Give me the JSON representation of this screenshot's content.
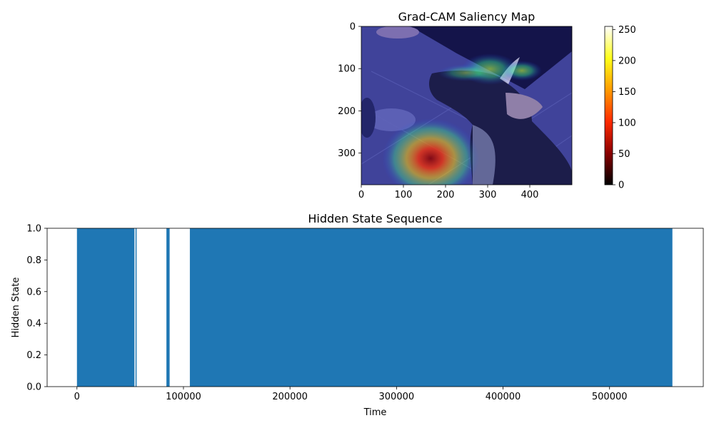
{
  "chart_data": [
    {
      "type": "heatmap",
      "title": "Grad-CAM Saliency Map",
      "image_description": "dog photo with saliency overlay",
      "image_size": [
        500,
        375
      ],
      "xticks": [
        "0",
        "100",
        "200",
        "300",
        "400"
      ],
      "yticks": [
        "0",
        "100",
        "200",
        "300"
      ],
      "colorbar": {
        "range": [
          0,
          255
        ],
        "ticks": [
          "0",
          "50",
          "100",
          "150",
          "200",
          "250"
        ],
        "colormap": [
          "#000000",
          "#8b0000",
          "#ff2a00",
          "#ff9c00",
          "#ffff1a",
          "#ffffff"
        ]
      },
      "hotspots": [
        {
          "x": 165,
          "y": 305,
          "value": 230
        },
        {
          "x": 305,
          "y": 100,
          "value": 120
        },
        {
          "x": 380,
          "y": 105,
          "value": 110
        },
        {
          "x": 250,
          "y": 110,
          "value": 80
        }
      ]
    },
    {
      "type": "area",
      "title": "Hidden State Sequence",
      "xlabel": "Time",
      "ylabel": "Hidden State",
      "xlim": [
        -28000,
        588000
      ],
      "ylim": [
        0,
        1
      ],
      "xticks": [
        "0",
        "100000",
        "200000",
        "300000",
        "400000",
        "500000"
      ],
      "yticks": [
        "0.0",
        "0.2",
        "0.4",
        "0.6",
        "0.8",
        "1.0"
      ],
      "color": "#1f77b4",
      "segments": [
        {
          "start": 0,
          "end": 54000,
          "value": 1
        },
        {
          "start": 55000,
          "end": 56000,
          "value": 1
        },
        {
          "start": 84000,
          "end": 87000,
          "value": 1
        },
        {
          "start": 106000,
          "end": 559000,
          "value": 1
        }
      ]
    }
  ]
}
